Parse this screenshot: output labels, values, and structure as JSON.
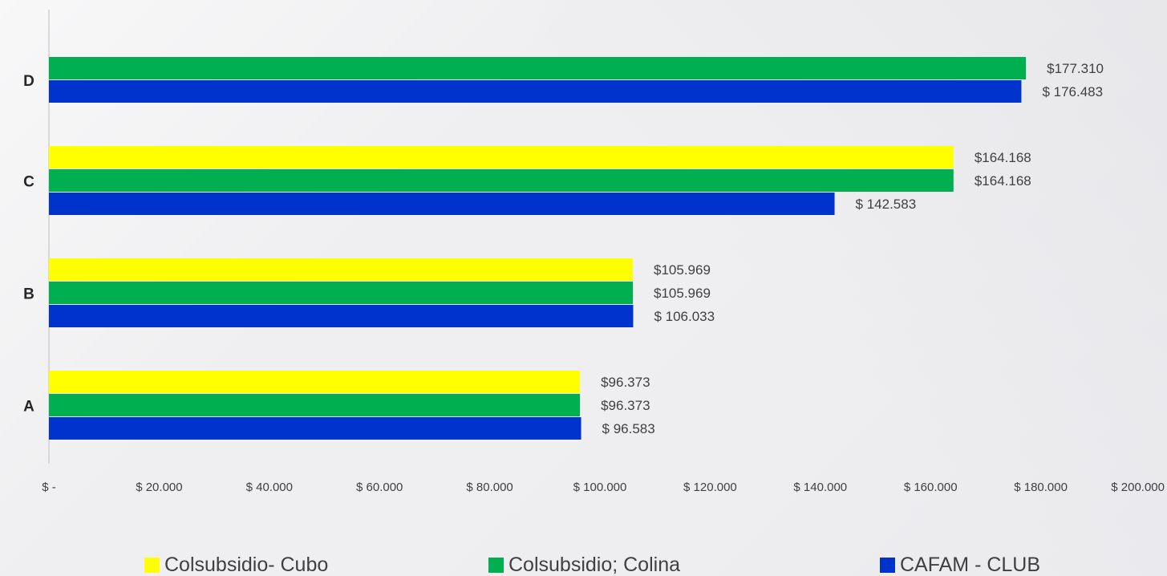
{
  "chart_data": {
    "type": "bar",
    "orientation": "horizontal",
    "categories": [
      "A",
      "B",
      "C",
      "D"
    ],
    "series": [
      {
        "name": "Colsubsidio- Cubo",
        "color": "#ffff00",
        "values": [
          96373,
          105969,
          164168,
          null
        ],
        "labels": [
          "$96.373",
          "$105.969",
          "$164.168",
          ""
        ]
      },
      {
        "name": "Colsubsidio; Colina",
        "color": "#00b050",
        "values": [
          96373,
          105969,
          164168,
          177310
        ],
        "labels": [
          "$96.373",
          "$105.969",
          "$164.168",
          "$177.310"
        ]
      },
      {
        "name": "CAFAM - CLUB",
        "color": "#0033cc",
        "values": [
          96583,
          106033,
          142583,
          176483
        ],
        "labels": [
          "$ 96.583",
          "$ 106.033",
          "$ 142.583",
          "$ 176.483"
        ]
      }
    ],
    "xlim": [
      0,
      200000
    ],
    "x_ticks": [
      0,
      20000,
      40000,
      60000,
      80000,
      100000,
      120000,
      140000,
      160000,
      180000,
      200000
    ],
    "x_tick_labels": [
      "$ -",
      "$ 20.000",
      "$ 40.000",
      "$ 60.000",
      "$ 80.000",
      "$ 100.000",
      "$ 120.000",
      "$ 140.000",
      "$ 160.000",
      "$ 180.000",
      "$ 200.000"
    ],
    "grid": false,
    "legend_position": "bottom"
  }
}
